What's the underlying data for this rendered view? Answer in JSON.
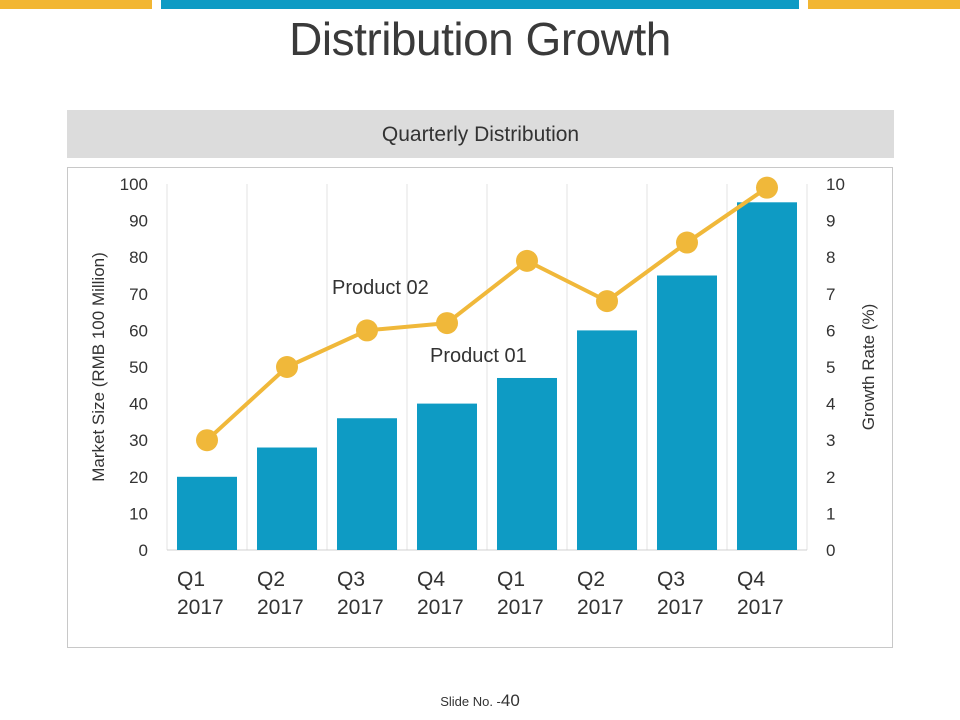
{
  "slide": {
    "title": "Distribution Growth",
    "header": "Quarterly Distribution",
    "slide_label": "Slide No. -",
    "slide_number": "40"
  },
  "colors": {
    "accent_blue": "#0e9bc4",
    "accent_gold": "#f2b632",
    "line_gold": "#f0b83a"
  },
  "chart_data": {
    "type": "bar",
    "title": "Quarterly Distribution",
    "categories": [
      [
        "Q1",
        "2017"
      ],
      [
        "Q2",
        "2017"
      ],
      [
        "Q3",
        "2017"
      ],
      [
        "Q4",
        "2017"
      ],
      [
        "Q1",
        "2017"
      ],
      [
        "Q2",
        "2017"
      ],
      [
        "Q3",
        "2017"
      ],
      [
        "Q4",
        "2017"
      ]
    ],
    "ylabel": "Market Size (RMB 100 Million)",
    "y2label": "Growth Rate (%)",
    "ylim": [
      0,
      100
    ],
    "y2lim": [
      0,
      10
    ],
    "yticks": [
      "0",
      "10",
      "20",
      "30",
      "40",
      "50",
      "60",
      "70",
      "80",
      "90",
      "100"
    ],
    "y2ticks": [
      "0",
      "1",
      "2",
      "3",
      "4",
      "5",
      "6",
      "7",
      "8",
      "9",
      "10"
    ],
    "grid": "vertical",
    "series": [
      {
        "name": "Product 01",
        "type": "bar",
        "axis": "left",
        "values": [
          20,
          28,
          36,
          40,
          47,
          60,
          75,
          95
        ]
      },
      {
        "name": "Product 02",
        "type": "line",
        "axis": "right",
        "values": [
          3.0,
          5.0,
          6.0,
          6.2,
          7.9,
          6.8,
          8.4,
          9.9
        ]
      }
    ],
    "annotations": [
      "Product 02",
      "Product 01"
    ]
  }
}
